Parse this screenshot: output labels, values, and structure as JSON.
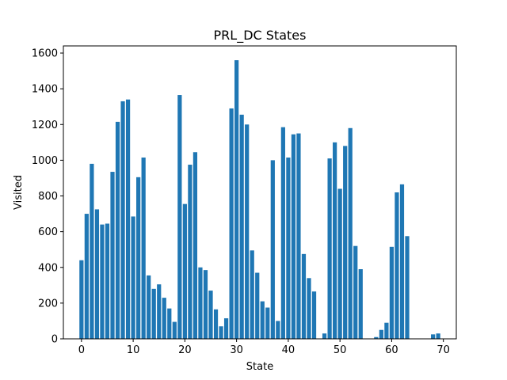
{
  "chart_data": {
    "type": "bar",
    "title": "PRL_DC States",
    "xlabel": "State",
    "ylabel": "Visited",
    "xlim": [
      -3.5,
      72.5
    ],
    "ylim": [
      0,
      1640
    ],
    "xticks": [
      0,
      10,
      20,
      30,
      40,
      50,
      60,
      70
    ],
    "yticks": [
      0,
      200,
      400,
      600,
      800,
      1000,
      1200,
      1400,
      1600
    ],
    "grid": false,
    "bar_color": "#1f77b4",
    "x": [
      0,
      1,
      2,
      3,
      4,
      5,
      6,
      7,
      8,
      9,
      10,
      11,
      12,
      13,
      14,
      15,
      16,
      17,
      18,
      19,
      20,
      21,
      22,
      23,
      24,
      25,
      26,
      27,
      28,
      29,
      30,
      31,
      32,
      33,
      34,
      35,
      36,
      37,
      38,
      39,
      40,
      41,
      42,
      43,
      44,
      45,
      46,
      47,
      48,
      49,
      50,
      51,
      52,
      53,
      54,
      55,
      56,
      57,
      58,
      59,
      60,
      61,
      62,
      63,
      64,
      65,
      66,
      67,
      68,
      69
    ],
    "values": [
      440,
      700,
      980,
      725,
      640,
      645,
      935,
      1215,
      1330,
      1340,
      685,
      905,
      1015,
      355,
      280,
      305,
      230,
      170,
      95,
      1365,
      755,
      975,
      1045,
      400,
      385,
      270,
      165,
      70,
      115,
      1290,
      1560,
      1255,
      1200,
      495,
      370,
      210,
      175,
      1000,
      100,
      1185,
      1015,
      1145,
      1150,
      475,
      340,
      265,
      0,
      30,
      1010,
      1100,
      840,
      1080,
      1180,
      520,
      390,
      0,
      0,
      10,
      50,
      90,
      515,
      820,
      865,
      575,
      0,
      0,
      0,
      0,
      25,
      30
    ]
  }
}
